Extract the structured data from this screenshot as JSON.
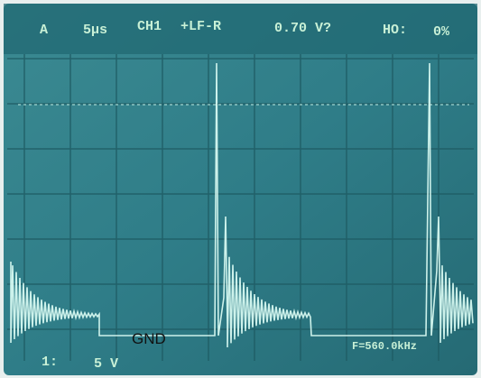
{
  "screen": {
    "top": {
      "trigger": "A",
      "timebase": "5µs",
      "channel": "CH1",
      "source": "+LF-R",
      "level": "0.70 V?",
      "holdoff_label": "HO:",
      "holdoff": "0%"
    },
    "bottom": {
      "channel": "1:",
      "scale": "5 V",
      "readout": "F=560.0kHz"
    },
    "marker": "GND"
  }
}
